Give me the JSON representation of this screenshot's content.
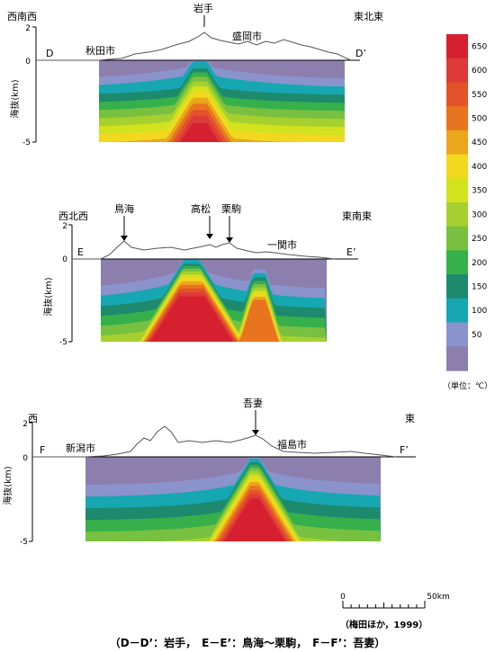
{
  "legend": {
    "unit_label": "（単位：℃）",
    "ticks": [
      "650",
      "600",
      "550",
      "500",
      "450",
      "400",
      "350",
      "300",
      "250",
      "200",
      "150",
      "100",
      "50"
    ],
    "colors": [
      "#d62030",
      "#dd3a3a",
      "#e4522a",
      "#e87420",
      "#eaa71b",
      "#f2d81f",
      "#d3e21e",
      "#a6d030",
      "#78c040",
      "#36b04a",
      "#1d8a6e",
      "#16a7b3",
      "#8a93cc",
      "#8c7fae"
    ]
  },
  "sections": [
    {
      "id": "D",
      "dir_left": "西南西",
      "dir_right": "東北東",
      "end_left": "D",
      "end_right": "D’",
      "place_labels": [
        "秋田市",
        "岩手",
        "盛岡市"
      ],
      "ylabel": "海抜(km)",
      "yticks": [
        "2",
        "0",
        "-5"
      ]
    },
    {
      "id": "E",
      "dir_left": "西北西",
      "dir_right": "東南東",
      "end_left": "E",
      "end_right": "E’",
      "place_labels": [
        "鳥海",
        "高松",
        "栗駒",
        "一関市"
      ],
      "ylabel": "海抜(km)",
      "yticks": [
        "2",
        "0",
        "-5"
      ]
    },
    {
      "id": "F",
      "dir_left": "西",
      "dir_right": "東",
      "end_left": "F",
      "end_right": "F’",
      "place_labels": [
        "新潟市",
        "吾妻",
        "福島市"
      ],
      "ylabel": "海抜(km)",
      "yticks": [
        "2",
        "0",
        "-5"
      ]
    }
  ],
  "scale": {
    "zero": "0",
    "end": "50km"
  },
  "source": "（梅田ほか，1999）",
  "caption": "（D－D’：岩手，　E－E’：鳥海～栗駒，　F－F’：吾妻）"
}
